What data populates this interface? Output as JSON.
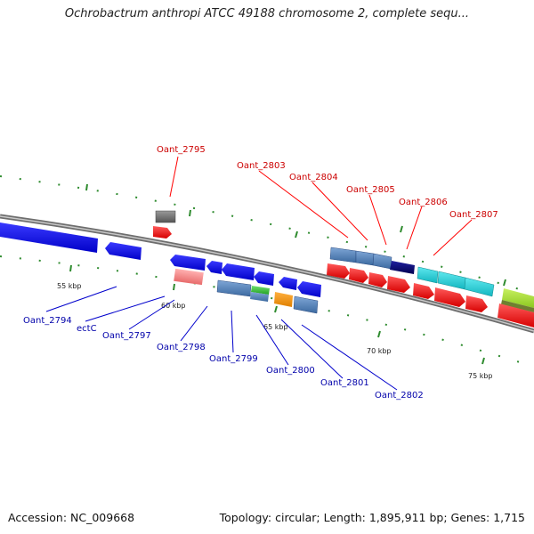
{
  "title": "Ochrobactrum anthropi ATCC 49188 chromosome 2, complete sequ...",
  "footer": {
    "accession": "Accession: NC_009668",
    "summary": "Topology: circular; Length: 1,895,911 bp; Genes: 1,715"
  },
  "ticks": [
    "55 kbp",
    "60 kbp",
    "65 kbp",
    "70 kbp",
    "75 kbp"
  ],
  "labels_top": [
    "Oant_2795",
    "Oant_2803",
    "Oant_2804",
    "Oant_2805",
    "Oant_2806",
    "Oant_2807"
  ],
  "labels_bottom": [
    "Oant_2794",
    "ectC",
    "Oant_2797",
    "Oant_2798",
    "Oant_2799",
    "Oant_2800",
    "Oant_2801",
    "Oant_2802"
  ],
  "colors": {
    "forward": "#ff0000",
    "reverse": "#0000ff",
    "steel": "#4f81bd",
    "cyan": "#1ecfd6",
    "navy": "#00006e",
    "backbone": "#888888"
  }
}
